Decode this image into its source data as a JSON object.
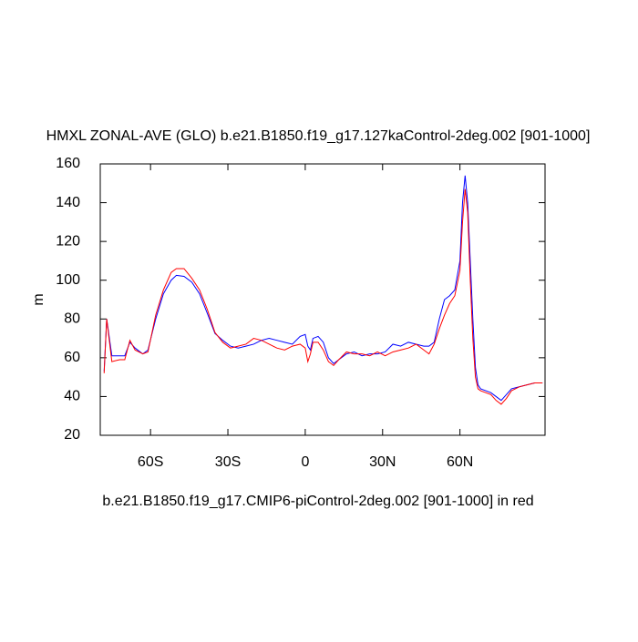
{
  "chart_data": {
    "type": "line",
    "title": "HMXL ZONAL-AVE (GLO) b.e21.B1850.f19_g17.127kaControl-2deg.002 [901-1000]",
    "x_label": "b.e21.B1850.f19_g17.CMIP6-piControl-2deg.002 [901-1000] in red",
    "y_label": "m",
    "x": [
      -78,
      -77,
      -75,
      -72,
      -70,
      -68,
      -66,
      -63,
      -61,
      -58,
      -55,
      -52,
      -50,
      -47,
      -44,
      -41,
      -38,
      -35,
      -32,
      -29,
      -26,
      -23,
      -20,
      -17,
      -14,
      -11,
      -8,
      -5,
      -2,
      0,
      1,
      2,
      3,
      5,
      7,
      9,
      11,
      13,
      16,
      19,
      22,
      25,
      28,
      31,
      34,
      37,
      40,
      43,
      46,
      48,
      50,
      52,
      54,
      56,
      58,
      60,
      61,
      62,
      63,
      64,
      65,
      66,
      67,
      68,
      70,
      72,
      74,
      76,
      78,
      80,
      83,
      86,
      89,
      92
    ],
    "series": [
      {
        "name": "b.e21.B1850.f19_g17.127kaControl-2deg.002",
        "color": "#0000ff",
        "values": [
          53,
          80,
          61,
          61,
          61,
          68,
          65,
          62,
          64,
          80,
          93,
          100,
          102.5,
          102,
          99,
          93,
          83,
          72.5,
          69,
          66,
          65,
          66,
          67,
          69,
          70,
          69,
          68,
          67,
          71,
          72,
          66,
          64,
          70,
          71,
          68,
          60,
          57,
          59,
          62,
          63,
          61,
          62,
          62,
          63,
          67,
          66,
          68,
          67,
          66,
          66,
          68,
          80,
          90,
          92,
          95,
          110,
          140,
          154,
          140,
          110,
          80,
          55,
          46,
          44,
          43,
          42,
          40,
          38,
          41,
          44,
          45,
          46,
          47,
          47
        ]
      },
      {
        "name": "b.e21.B1850.f19_g17.CMIP6-piControl-2deg.002",
        "color": "#ff0000",
        "values": [
          52,
          80,
          58,
          59,
          59,
          69,
          64,
          62,
          63,
          82,
          95,
          104,
          106,
          106,
          101,
          95,
          85,
          73,
          68,
          65,
          66,
          67,
          70,
          69,
          67,
          65,
          64,
          66,
          67,
          65,
          58,
          62,
          68,
          68,
          64,
          58,
          56,
          59,
          63,
          62,
          62,
          61,
          63,
          61,
          63,
          64,
          65,
          67,
          64,
          62,
          67,
          75,
          82,
          88,
          92,
          105,
          130,
          147,
          135,
          100,
          70,
          50,
          44,
          43,
          42,
          41,
          38,
          36,
          39,
          43,
          45,
          46,
          47,
          47
        ]
      }
    ],
    "xlim": [
      -79.5,
      93
    ],
    "xticks": [
      {
        "value": -60,
        "label": "60S"
      },
      {
        "value": -30,
        "label": "30S"
      },
      0,
      {
        "value": 30,
        "label": "30N"
      },
      {
        "value": 60,
        "label": "60N"
      }
    ],
    "ylim": [
      20,
      160
    ],
    "yticks": [
      20,
      40,
      60,
      80,
      100,
      120,
      140,
      160
    ]
  }
}
